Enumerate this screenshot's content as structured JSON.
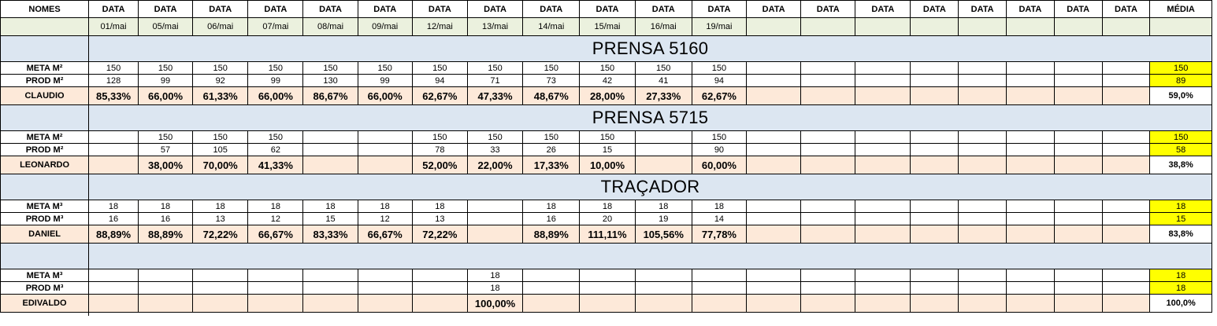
{
  "header": {
    "names_label": "NOMES",
    "date_label": "DATA",
    "average_label": "MÉDIA",
    "date_count": 20,
    "dates": [
      "01/mai",
      "05/mai",
      "06/mai",
      "07/mai",
      "08/mai",
      "09/mai",
      "12/mai",
      "13/mai",
      "14/mai",
      "15/mai",
      "16/mai",
      "19/mai",
      "",
      "",
      "",
      "",
      "",
      "",
      "",
      ""
    ]
  },
  "colors": {
    "date_row_bg": "#ebf1de",
    "section_bg": "#dce6f1",
    "percent_row_bg": "#fde9d9",
    "average_highlight": "#ffff00"
  },
  "sections": [
    {
      "title": "PRENSA 5160",
      "meta_label": "META M²",
      "prod_label": "PROD M²",
      "operator": "CLAUDIO",
      "meta": [
        "150",
        "150",
        "150",
        "150",
        "150",
        "150",
        "150",
        "150",
        "150",
        "150",
        "150",
        "150",
        "",
        "",
        "",
        "",
        "",
        "",
        "",
        ""
      ],
      "prod": [
        "128",
        "99",
        "92",
        "99",
        "130",
        "99",
        "94",
        "71",
        "73",
        "42",
        "41",
        "94",
        "",
        "",
        "",
        "",
        "",
        "",
        "",
        ""
      ],
      "percent": [
        "85,33%",
        "66,00%",
        "61,33%",
        "66,00%",
        "86,67%",
        "66,00%",
        "62,67%",
        "47,33%",
        "48,67%",
        "28,00%",
        "27,33%",
        "62,67%",
        "",
        "",
        "",
        "",
        "",
        "",
        "",
        ""
      ],
      "avg_meta": "150",
      "avg_prod": "89",
      "avg_percent": "59,0%"
    },
    {
      "title": "PRENSA 5715",
      "meta_label": "META M²",
      "prod_label": "PROD M²",
      "operator": "LEONARDO",
      "meta": [
        "",
        "150",
        "150",
        "150",
        "",
        "",
        "150",
        "150",
        "150",
        "150",
        "",
        "150",
        "",
        "",
        "",
        "",
        "",
        "",
        "",
        ""
      ],
      "prod": [
        "",
        "57",
        "105",
        "62",
        "",
        "",
        "78",
        "33",
        "26",
        "15",
        "",
        "90",
        "",
        "",
        "",
        "",
        "",
        "",
        "",
        ""
      ],
      "percent": [
        "",
        "38,00%",
        "70,00%",
        "41,33%",
        "",
        "",
        "52,00%",
        "22,00%",
        "17,33%",
        "10,00%",
        "",
        "60,00%",
        "",
        "",
        "",
        "",
        "",
        "",
        "",
        ""
      ],
      "avg_meta": "150",
      "avg_prod": "58",
      "avg_percent": "38,8%"
    },
    {
      "title": "TRAÇADOR",
      "meta_label": "META M³",
      "prod_label": "PROD M³",
      "operator": "DANIEL",
      "meta": [
        "18",
        "18",
        "18",
        "18",
        "18",
        "18",
        "18",
        "",
        "18",
        "18",
        "18",
        "18",
        "",
        "",
        "",
        "",
        "",
        "",
        "",
        ""
      ],
      "prod": [
        "16",
        "16",
        "13",
        "12",
        "15",
        "12",
        "13",
        "",
        "16",
        "20",
        "19",
        "14",
        "",
        "",
        "",
        "",
        "",
        "",
        "",
        ""
      ],
      "percent": [
        "88,89%",
        "88,89%",
        "72,22%",
        "66,67%",
        "83,33%",
        "66,67%",
        "72,22%",
        "",
        "88,89%",
        "111,11%",
        "105,56%",
        "77,78%",
        "",
        "",
        "",
        "",
        "",
        "",
        "",
        ""
      ],
      "avg_meta": "18",
      "avg_prod": "15",
      "avg_percent": "83,8%"
    },
    {
      "title": "",
      "meta_label": "META M³",
      "prod_label": "PROD M³",
      "operator": "EDIVALDO",
      "meta": [
        "",
        "",
        "",
        "",
        "",
        "",
        "",
        "18",
        "",
        "",
        "",
        "",
        "",
        "",
        "",
        "",
        "",
        "",
        "",
        ""
      ],
      "prod": [
        "",
        "",
        "",
        "",
        "",
        "",
        "",
        "18",
        "",
        "",
        "",
        "",
        "",
        "",
        "",
        "",
        "",
        "",
        "",
        ""
      ],
      "percent": [
        "",
        "",
        "",
        "",
        "",
        "",
        "",
        "100,00%",
        "",
        "",
        "",
        "",
        "",
        "",
        "",
        "",
        "",
        "",
        "",
        ""
      ],
      "avg_meta": "18",
      "avg_prod": "18",
      "avg_percent": "100,0%"
    }
  ]
}
